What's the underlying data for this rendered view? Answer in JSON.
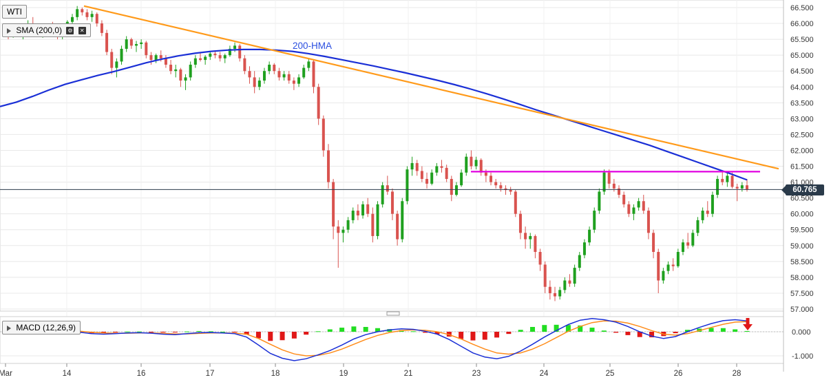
{
  "chart_title": "WTI",
  "legend": {
    "sma_label": "SMA (200,0)",
    "macd_label": "MACD (12,26,9)",
    "hma_annotation": "200-HMA"
  },
  "colors": {
    "up_candle": "#1fa01f",
    "down_candle": "#d9534f",
    "hma": "#1a2fd6",
    "trendline": "#ff9a1a",
    "resistance": "#e000e0",
    "macd_line": "#1a2fd6",
    "signal_line": "#ff8c1a",
    "hist_pos": "#22dd22",
    "hist_neg": "#e01818",
    "grid": "#e8e8e8",
    "arrow": "#e01818"
  },
  "last_price_label": "60.765",
  "chart_data": [
    {
      "type": "candlestick",
      "title": "WTI",
      "x_ticks": [
        "Mar",
        "14",
        "16",
        "17",
        "18",
        "19",
        "21",
        "23",
        "24",
        "25",
        "26",
        "28"
      ],
      "y_ticks": [
        "66.500",
        "66.000",
        "65.500",
        "65.000",
        "64.500",
        "64.000",
        "63.500",
        "63.000",
        "62.500",
        "62.000",
        "61.500",
        "61.000",
        "60.500",
        "60.000",
        "59.500",
        "59.000",
        "58.500",
        "58.000",
        "57.500",
        "57.000"
      ],
      "ylim": [
        57.0,
        66.7
      ],
      "grid": true,
      "last_price": 60.765,
      "ohlc": [
        [
          65.8,
          65.95,
          65.5,
          65.7
        ],
        [
          65.7,
          65.9,
          65.55,
          65.85
        ],
        [
          65.85,
          66.0,
          65.6,
          65.65
        ],
        [
          65.65,
          65.8,
          65.5,
          65.75
        ],
        [
          65.75,
          66.1,
          65.7,
          66.0
        ],
        [
          66.0,
          66.2,
          65.85,
          65.9
        ],
        [
          65.9,
          66.0,
          65.6,
          65.7
        ],
        [
          65.7,
          65.9,
          65.55,
          65.8
        ],
        [
          65.8,
          66.0,
          65.7,
          65.95
        ],
        [
          65.95,
          66.05,
          65.75,
          65.8
        ],
        [
          65.8,
          65.95,
          65.5,
          65.6
        ],
        [
          65.6,
          65.75,
          65.5,
          65.7
        ],
        [
          65.7,
          66.1,
          65.65,
          66.05
        ],
        [
          66.05,
          66.3,
          65.9,
          66.2
        ],
        [
          66.2,
          66.55,
          66.1,
          66.45
        ],
        [
          66.45,
          66.5,
          66.25,
          66.35
        ],
        [
          66.35,
          66.45,
          66.1,
          66.2
        ],
        [
          66.2,
          66.4,
          66.05,
          66.3
        ],
        [
          66.3,
          66.35,
          65.9,
          66.0
        ],
        [
          66.0,
          66.1,
          65.6,
          65.7
        ],
        [
          65.7,
          65.8,
          65.0,
          65.1
        ],
        [
          65.1,
          65.2,
          64.4,
          64.6
        ],
        [
          64.6,
          64.9,
          64.3,
          64.8
        ],
        [
          64.8,
          65.3,
          64.7,
          65.2
        ],
        [
          65.2,
          65.6,
          65.1,
          65.5
        ],
        [
          65.5,
          65.55,
          65.2,
          65.3
        ],
        [
          65.3,
          65.45,
          65.1,
          65.35
        ],
        [
          65.35,
          65.5,
          65.2,
          65.4
        ],
        [
          65.4,
          65.45,
          64.9,
          65.0
        ],
        [
          65.0,
          65.1,
          64.7,
          64.85
        ],
        [
          64.85,
          65.05,
          64.75,
          65.0
        ],
        [
          65.0,
          65.15,
          64.8,
          64.9
        ],
        [
          64.9,
          65.0,
          64.6,
          64.7
        ],
        [
          64.7,
          64.85,
          64.4,
          64.5
        ],
        [
          64.5,
          64.7,
          64.3,
          64.55
        ],
        [
          64.55,
          64.6,
          64.0,
          64.2
        ],
        [
          64.2,
          64.4,
          63.9,
          64.3
        ],
        [
          64.3,
          64.8,
          64.2,
          64.7
        ],
        [
          64.7,
          65.0,
          64.6,
          64.9
        ],
        [
          64.9,
          65.1,
          64.8,
          64.85
        ],
        [
          64.85,
          65.0,
          64.7,
          64.95
        ],
        [
          64.95,
          65.1,
          64.85,
          65.05
        ],
        [
          65.05,
          65.15,
          64.9,
          65.0
        ],
        [
          65.0,
          65.1,
          64.8,
          64.9
        ],
        [
          64.9,
          65.05,
          64.75,
          65.0
        ],
        [
          65.0,
          65.3,
          64.95,
          65.2
        ],
        [
          65.2,
          65.4,
          65.1,
          65.3
        ],
        [
          65.3,
          65.35,
          64.8,
          64.9
        ],
        [
          64.9,
          65.0,
          64.4,
          64.5
        ],
        [
          64.5,
          64.65,
          64.1,
          64.3
        ],
        [
          64.3,
          64.5,
          63.8,
          64.0
        ],
        [
          64.0,
          64.3,
          63.9,
          64.2
        ],
        [
          64.2,
          64.6,
          64.1,
          64.5
        ],
        [
          64.5,
          64.8,
          64.4,
          64.7
        ],
        [
          64.7,
          64.75,
          64.4,
          64.5
        ],
        [
          64.5,
          64.6,
          64.2,
          64.3
        ],
        [
          64.3,
          64.5,
          64.2,
          64.4
        ],
        [
          64.4,
          64.5,
          64.1,
          64.2
        ],
        [
          64.2,
          64.3,
          63.9,
          64.1
        ],
        [
          64.1,
          64.4,
          64.0,
          64.3
        ],
        [
          64.3,
          64.7,
          64.25,
          64.6
        ],
        [
          64.6,
          64.9,
          64.5,
          64.8
        ],
        [
          64.8,
          64.85,
          63.8,
          64.0
        ],
        [
          64.0,
          64.1,
          62.8,
          63.0
        ],
        [
          63.0,
          63.1,
          61.8,
          62.0
        ],
        [
          62.0,
          62.2,
          60.8,
          61.0
        ],
        [
          61.0,
          61.1,
          59.2,
          59.6
        ],
        [
          59.6,
          59.8,
          58.3,
          59.4
        ],
        [
          59.4,
          59.6,
          59.1,
          59.5
        ],
        [
          59.5,
          59.9,
          59.4,
          59.8
        ],
        [
          59.8,
          60.2,
          59.7,
          60.1
        ],
        [
          60.1,
          60.3,
          59.8,
          59.95
        ],
        [
          59.95,
          60.4,
          59.85,
          60.3
        ],
        [
          60.3,
          60.5,
          59.9,
          60.0
        ],
        [
          60.0,
          60.2,
          59.1,
          59.3
        ],
        [
          59.3,
          60.4,
          59.2,
          60.3
        ],
        [
          60.3,
          61.0,
          60.2,
          60.9
        ],
        [
          60.9,
          61.2,
          60.6,
          60.7
        ],
        [
          60.7,
          60.8,
          59.8,
          60.0
        ],
        [
          60.0,
          60.1,
          59.0,
          59.2
        ],
        [
          59.2,
          60.5,
          59.1,
          60.4
        ],
        [
          60.4,
          61.5,
          60.3,
          61.4
        ],
        [
          61.4,
          61.8,
          61.2,
          61.6
        ],
        [
          61.6,
          61.7,
          61.2,
          61.35
        ],
        [
          61.35,
          61.5,
          61.0,
          61.1
        ],
        [
          61.1,
          61.3,
          60.8,
          60.95
        ],
        [
          60.95,
          61.4,
          60.9,
          61.3
        ],
        [
          61.3,
          61.6,
          61.2,
          61.5
        ],
        [
          61.5,
          61.7,
          61.3,
          61.45
        ],
        [
          61.45,
          61.55,
          61.0,
          61.1
        ],
        [
          61.1,
          61.2,
          60.4,
          60.6
        ],
        [
          60.6,
          61.0,
          60.55,
          60.9
        ],
        [
          60.9,
          61.4,
          60.85,
          61.3
        ],
        [
          61.3,
          61.9,
          61.2,
          61.8
        ],
        [
          61.8,
          62.0,
          61.4,
          61.5
        ],
        [
          61.5,
          61.8,
          61.4,
          61.7
        ],
        [
          61.7,
          61.75,
          61.2,
          61.3
        ],
        [
          61.3,
          61.4,
          61.0,
          61.2
        ],
        [
          61.2,
          61.3,
          60.9,
          61.0
        ],
        [
          61.0,
          61.1,
          60.8,
          60.9
        ],
        [
          60.9,
          61.0,
          60.7,
          60.8
        ],
        [
          60.8,
          60.9,
          60.6,
          60.75
        ],
        [
          60.75,
          60.85,
          60.6,
          60.7
        ],
        [
          60.7,
          60.75,
          59.9,
          60.0
        ],
        [
          60.0,
          60.1,
          59.2,
          59.4
        ],
        [
          59.4,
          59.6,
          58.9,
          59.2
        ],
        [
          59.2,
          59.4,
          58.9,
          59.3
        ],
        [
          59.3,
          59.35,
          58.6,
          58.8
        ],
        [
          58.8,
          58.9,
          58.2,
          58.4
        ],
        [
          58.4,
          58.5,
          57.5,
          57.7
        ],
        [
          57.7,
          57.9,
          57.3,
          57.5
        ],
        [
          57.5,
          57.7,
          57.25,
          57.4
        ],
        [
          57.4,
          57.7,
          57.3,
          57.6
        ],
        [
          57.6,
          58.0,
          57.5,
          57.9
        ],
        [
          57.9,
          58.1,
          57.7,
          57.8
        ],
        [
          57.8,
          58.4,
          57.7,
          58.3
        ],
        [
          58.3,
          58.8,
          58.2,
          58.7
        ],
        [
          58.7,
          59.2,
          58.6,
          59.1
        ],
        [
          59.1,
          59.6,
          59.0,
          59.5
        ],
        [
          59.5,
          60.2,
          59.4,
          60.1
        ],
        [
          60.1,
          60.8,
          60.0,
          60.7
        ],
        [
          60.7,
          61.4,
          60.6,
          61.3
        ],
        [
          61.3,
          61.4,
          60.8,
          60.95
        ],
        [
          60.95,
          61.1,
          60.7,
          60.8
        ],
        [
          60.8,
          60.9,
          60.5,
          60.6
        ],
        [
          60.6,
          60.7,
          60.2,
          60.3
        ],
        [
          60.3,
          60.4,
          59.9,
          60.0
        ],
        [
          60.0,
          60.3,
          59.8,
          60.2
        ],
        [
          60.2,
          60.5,
          60.1,
          60.4
        ],
        [
          60.4,
          60.6,
          60.0,
          60.1
        ],
        [
          60.1,
          60.2,
          59.2,
          59.4
        ],
        [
          59.4,
          59.5,
          58.6,
          58.8
        ],
        [
          58.8,
          58.9,
          57.5,
          57.9
        ],
        [
          57.9,
          58.3,
          57.8,
          58.2
        ],
        [
          58.2,
          58.5,
          58.1,
          58.4
        ],
        [
          58.4,
          58.6,
          58.2,
          58.35
        ],
        [
          58.35,
          58.9,
          58.3,
          58.8
        ],
        [
          58.8,
          59.2,
          58.7,
          59.1
        ],
        [
          59.1,
          59.4,
          58.9,
          59.0
        ],
        [
          59.0,
          59.5,
          58.95,
          59.4
        ],
        [
          59.4,
          59.9,
          59.3,
          59.8
        ],
        [
          59.8,
          60.2,
          59.7,
          60.1
        ],
        [
          60.1,
          60.4,
          59.9,
          60.0
        ],
        [
          60.0,
          60.7,
          59.9,
          60.6
        ],
        [
          60.6,
          61.2,
          60.5,
          61.1
        ],
        [
          61.1,
          61.35,
          60.9,
          61.0
        ],
        [
          61.0,
          61.3,
          60.85,
          61.2
        ],
        [
          61.2,
          61.3,
          60.8,
          60.85
        ],
        [
          60.85,
          60.95,
          60.4,
          60.8
        ],
        [
          60.8,
          61.0,
          60.7,
          60.9
        ],
        [
          60.9,
          61.1,
          60.7,
          60.77
        ]
      ],
      "hma_values": [
        63.38,
        63.52,
        63.7,
        63.9,
        64.08,
        64.22,
        64.36,
        64.48,
        64.62,
        64.76,
        64.88,
        64.98,
        65.06,
        65.12,
        65.16,
        65.18,
        65.18,
        65.16,
        65.12,
        65.05,
        64.96,
        64.86,
        64.76,
        64.66,
        64.55,
        64.44,
        64.32,
        64.2,
        64.07,
        63.93,
        63.78,
        63.62,
        63.45,
        63.28,
        63.12,
        62.96,
        62.8,
        62.64,
        62.48,
        62.32,
        62.16,
        61.98,
        61.8,
        61.62,
        61.44,
        61.26,
        61.07
      ],
      "trendline": {
        "from": [
          66.55
        ],
        "to": [
          61.42
        ]
      },
      "resistance_level": 61.33,
      "annotations": [
        "200-HMA"
      ]
    },
    {
      "type": "macd",
      "title": "MACD (12,26,9)",
      "y_ticks": [
        "0.000",
        "-1.000"
      ],
      "ylim": [
        -1.25,
        0.55
      ],
      "series": [
        {
          "name": "MACD",
          "values": [
            0.05,
            0.06,
            0.07,
            0.08,
            0.06,
            0.03,
            -0.02,
            -0.08,
            -0.1,
            -0.08,
            -0.05,
            -0.04,
            -0.06,
            -0.1,
            -0.12,
            -0.08,
            -0.04,
            -0.03,
            -0.05,
            -0.08,
            -0.22,
            -0.55,
            -0.9,
            -1.1,
            -1.2,
            -1.12,
            -0.96,
            -0.78,
            -0.55,
            -0.3,
            -0.12,
            0.0,
            0.08,
            0.12,
            0.1,
            0.02,
            -0.1,
            -0.32,
            -0.6,
            -0.88,
            -1.05,
            -1.12,
            -1.02,
            -0.8,
            -0.52,
            -0.22,
            0.05,
            0.3,
            0.48,
            0.55,
            0.5,
            0.4,
            0.22,
            0.0,
            -0.18,
            -0.28,
            -0.2,
            0.0,
            0.18,
            0.34,
            0.46,
            0.5,
            0.45
          ]
        },
        {
          "name": "Signal",
          "values": [
            0.02,
            0.03,
            0.04,
            0.05,
            0.05,
            0.04,
            0.02,
            -0.02,
            -0.05,
            -0.06,
            -0.06,
            -0.05,
            -0.05,
            -0.07,
            -0.09,
            -0.09,
            -0.07,
            -0.05,
            -0.05,
            -0.06,
            -0.1,
            -0.28,
            -0.52,
            -0.75,
            -0.92,
            -1.0,
            -0.98,
            -0.88,
            -0.72,
            -0.52,
            -0.32,
            -0.15,
            -0.03,
            0.05,
            0.08,
            0.06,
            0.0,
            -0.12,
            -0.3,
            -0.52,
            -0.72,
            -0.88,
            -0.93,
            -0.88,
            -0.72,
            -0.5,
            -0.24,
            0.02,
            0.22,
            0.38,
            0.45,
            0.44,
            0.36,
            0.22,
            0.05,
            -0.1,
            -0.14,
            -0.08,
            0.05,
            0.18,
            0.31,
            0.4,
            0.42
          ]
        },
        {
          "name": "Histogram",
          "values": [
            0.03,
            0.03,
            0.03,
            0.03,
            0.01,
            -0.01,
            -0.04,
            -0.06,
            -0.05,
            -0.02,
            0.01,
            0.01,
            -0.01,
            -0.03,
            -0.03,
            0.01,
            0.03,
            0.02,
            0.0,
            -0.02,
            -0.12,
            -0.27,
            -0.38,
            -0.35,
            -0.28,
            -0.12,
            0.02,
            0.1,
            0.17,
            0.22,
            0.2,
            0.15,
            0.11,
            0.07,
            0.02,
            -0.04,
            -0.1,
            -0.2,
            -0.3,
            -0.36,
            -0.33,
            -0.24,
            -0.09,
            0.08,
            0.2,
            0.28,
            0.29,
            0.28,
            0.26,
            0.17,
            0.05,
            -0.04,
            -0.14,
            -0.22,
            -0.23,
            -0.18,
            -0.06,
            0.08,
            0.13,
            0.16,
            0.15,
            0.1,
            0.03
          ]
        }
      ]
    }
  ]
}
